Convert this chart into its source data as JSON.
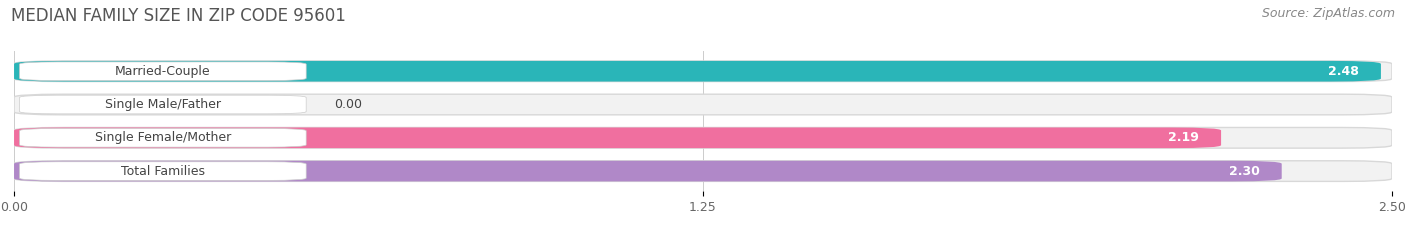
{
  "title": "MEDIAN FAMILY SIZE IN ZIP CODE 95601",
  "source": "Source: ZipAtlas.com",
  "categories": [
    "Married-Couple",
    "Single Male/Father",
    "Single Female/Mother",
    "Total Families"
  ],
  "values": [
    2.48,
    0.0,
    2.19,
    2.3
  ],
  "bar_colors": [
    "#2ab5b8",
    "#a0b4e8",
    "#f06f9f",
    "#b088c8"
  ],
  "xlim": [
    0,
    2.5
  ],
  "xticks": [
    0.0,
    1.25,
    2.5
  ],
  "xtick_labels": [
    "0.00",
    "1.25",
    "2.50"
  ],
  "bar_height": 0.62,
  "background_color": "#ffffff",
  "title_fontsize": 12,
  "source_fontsize": 9,
  "label_fontsize": 9,
  "value_fontsize": 9
}
